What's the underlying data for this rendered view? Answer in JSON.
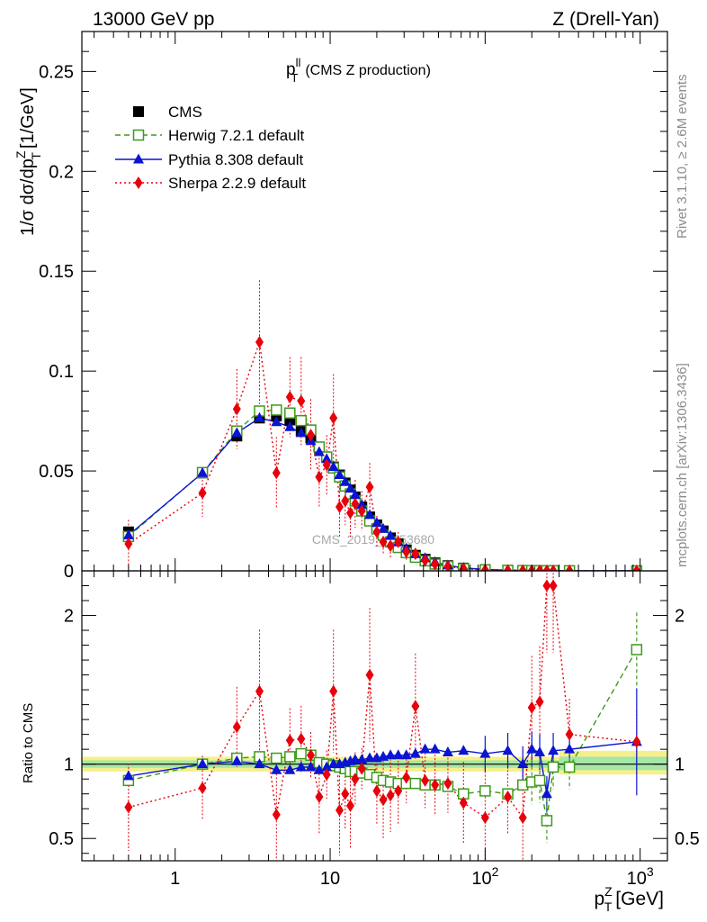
{
  "header": {
    "left": "13000 GeV pp",
    "right": "Z (Drell-Yan)"
  },
  "side_labels": {
    "rivet": "Rivet 3.1.10, ≥ 2.6M events",
    "mcplots": "mcplots.cern.ch [arXiv:1306.3436]"
  },
  "chart_data": [
    {
      "type": "scatter",
      "panel": "main",
      "title_base": "p",
      "title_sup": "ll",
      "title_sub": "T",
      "title_rest": "(CMS Z production)",
      "ylabel": "1/σ dσ/dp",
      "ylabel_sup": "Z",
      "ylabel_sub": "T",
      "ylabel_unit": "[1/GeV]",
      "x_scale": "log",
      "xlim": [
        0.25,
        1500
      ],
      "ylim": [
        0,
        0.27
      ],
      "yticks": [
        "0",
        "0.05",
        "0.1",
        "0.15",
        "0.2",
        "0.25"
      ],
      "watermark": "CMS_2019_I1753680",
      "legend_position": "top-left",
      "x": [
        0.5,
        1.5,
        2.5,
        3.5,
        4.5,
        5.5,
        6.5,
        7.5,
        8.5,
        9.5,
        10.5,
        11.5,
        12.5,
        13.5,
        14.5,
        16.0,
        18.0,
        20.0,
        22.0,
        24.5,
        27.5,
        31.0,
        35.5,
        41.0,
        47.5,
        57.5,
        72.5,
        100,
        140,
        175,
        200,
        225,
        250,
        275,
        350,
        950
      ],
      "series": [
        {
          "name": "CMS",
          "color": "#000000",
          "marker": "square-filled",
          "values": [
            0.0195,
            0.049,
            0.0675,
            0.0765,
            0.0775,
            0.0755,
            0.07,
            0.0665,
            0.0615,
            0.057,
            0.052,
            0.048,
            0.044,
            0.0405,
            0.037,
            0.032,
            0.027,
            0.023,
            0.02,
            0.0165,
            0.0135,
            0.0105,
            0.0078,
            0.0058,
            0.004,
            0.0026,
            0.0014,
            0.0006,
            0.0003,
            0.0002,
            0.00015,
            0.00012,
            0.0001,
            8e-05,
            4e-05,
            5e-06
          ]
        },
        {
          "name": "Herwig 7.2.1 default",
          "color": "#3c9a1a",
          "marker": "square-open",
          "line": "dashed",
          "values": [
            0.0172,
            0.0492,
            0.07,
            0.08,
            0.0805,
            0.079,
            0.0752,
            0.0705,
            0.062,
            0.057,
            0.0515,
            0.047,
            0.0425,
            0.0385,
            0.035,
            0.03,
            0.025,
            0.021,
            0.0178,
            0.0145,
            0.0117,
            0.0091,
            0.0068,
            0.005,
            0.0034,
            0.0022,
            0.0011,
            0.0005,
            0.00025,
            0.00016,
            0.00013,
            0.0001,
            8e-05,
            6e-05,
            4e-05,
            8e-06
          ]
        },
        {
          "name": "Pythia 8.308 default",
          "color": "#0a14d2",
          "marker": "triangle-filled",
          "line": "solid",
          "values": [
            0.0178,
            0.049,
            0.069,
            0.0765,
            0.0745,
            0.072,
            0.069,
            0.065,
            0.0595,
            0.056,
            0.052,
            0.048,
            0.0445,
            0.0412,
            0.038,
            0.033,
            0.028,
            0.024,
            0.021,
            0.0175,
            0.0143,
            0.0112,
            0.0084,
            0.0064,
            0.0044,
            0.0028,
            0.0015,
            0.0007,
            0.00035,
            0.00022,
            0.00017,
            0.00013,
            0.00011,
            8e-05,
            5e-05,
            1e-05
          ]
        },
        {
          "name": "Sherpa 2.2.9 default",
          "color": "#e8000b",
          "marker": "diamond-filled",
          "line": "dotted",
          "values": [
            0.0135,
            0.039,
            0.081,
            0.1145,
            0.049,
            0.087,
            0.085,
            0.068,
            0.047,
            0.053,
            0.0765,
            0.032,
            0.035,
            0.029,
            0.0335,
            0.03,
            0.042,
            0.0195,
            0.0145,
            0.0125,
            0.0145,
            0.0095,
            0.0085,
            0.0052,
            0.0034,
            0.0022,
            0.001,
            0.0004,
            0.00025,
            0.00015,
            0.0001,
            0.0001,
            8e-05,
            5e-05,
            3e-05,
            1e-05
          ]
        }
      ],
      "sherpa_err": [
        0.012,
        0.012,
        0.02,
        0.031,
        0.018,
        0.02,
        0.022,
        0.018,
        0.015,
        0.015,
        0.022,
        0.015,
        0.012,
        0.012,
        0.012,
        0.01,
        0.012,
        0.008,
        0.006,
        0.006,
        0.005,
        0.004,
        0.003,
        0.002,
        0.001,
        0.001,
        0.0005,
        0.0003,
        0.0002,
        0.0001,
        0.0001,
        0.0001,
        0.0001,
        5e-05,
        3e-05,
        1e-05
      ]
    },
    {
      "type": "scatter",
      "panel": "ratio",
      "ylabel": "Ratio to CMS",
      "xlabel": "p",
      "xlabel_sup": "Z",
      "xlabel_sub": "T",
      "xlabel_unit": "[GeV]",
      "x_scale": "log",
      "xlim": [
        0.25,
        1500
      ],
      "ylim": [
        0.35,
        2.3
      ],
      "yticks": [
        "0.5",
        "1",
        "2"
      ],
      "xticks": [
        {
          "base": "1",
          "exp": ""
        },
        {
          "base": "10",
          "exp": ""
        },
        {
          "base": "10",
          "exp": "2"
        },
        {
          "base": "10",
          "exp": "3"
        }
      ],
      "x": [
        0.5,
        1.5,
        2.5,
        3.5,
        4.5,
        5.5,
        6.5,
        7.5,
        8.5,
        9.5,
        10.5,
        11.5,
        12.5,
        13.5,
        14.5,
        16.0,
        18.0,
        20.0,
        22.0,
        24.5,
        27.5,
        31.0,
        35.5,
        41.0,
        47.5,
        57.5,
        72.5,
        100,
        140,
        175,
        200,
        225,
        250,
        275,
        350,
        950
      ],
      "series": [
        {
          "name": "Herwig 7.2.1 default",
          "values": [
            0.89,
            1.0,
            1.04,
            1.05,
            1.04,
            1.05,
            1.07,
            1.06,
            1.01,
            1.0,
            0.99,
            0.98,
            0.97,
            0.95,
            0.95,
            0.94,
            0.93,
            0.91,
            0.89,
            0.88,
            0.87,
            0.87,
            0.87,
            0.86,
            0.86,
            0.85,
            0.8,
            0.82,
            0.8,
            0.86,
            0.88,
            0.89,
            0.62,
            0.98,
            0.98,
            1.77
          ]
        },
        {
          "name": "Pythia 8.308 default",
          "values": [
            0.92,
            1.0,
            1.02,
            1.0,
            0.96,
            0.96,
            0.98,
            0.98,
            0.96,
            0.98,
            1.0,
            1.0,
            1.01,
            1.02,
            1.03,
            1.03,
            1.04,
            1.04,
            1.05,
            1.06,
            1.06,
            1.06,
            1.07,
            1.1,
            1.1,
            1.08,
            1.09,
            1.07,
            1.09,
            1.0,
            1.1,
            1.08,
            0.8,
            1.09,
            1.1,
            1.15
          ]
        },
        {
          "name": "Sherpa 2.2.9 default",
          "values": [
            0.71,
            0.84,
            1.25,
            1.49,
            0.66,
            1.16,
            1.17,
            1.06,
            0.78,
            0.93,
            1.49,
            0.69,
            0.8,
            0.72,
            0.9,
            0.97,
            1.6,
            0.82,
            0.76,
            0.79,
            0.82,
            0.91,
            1.39,
            0.89,
            0.86,
            0.87,
            0.74,
            0.64,
            0.78,
            0.64,
            1.38,
            1.42,
            2.2,
            2.2,
            1.2,
            1.15
          ]
        }
      ]
    }
  ]
}
